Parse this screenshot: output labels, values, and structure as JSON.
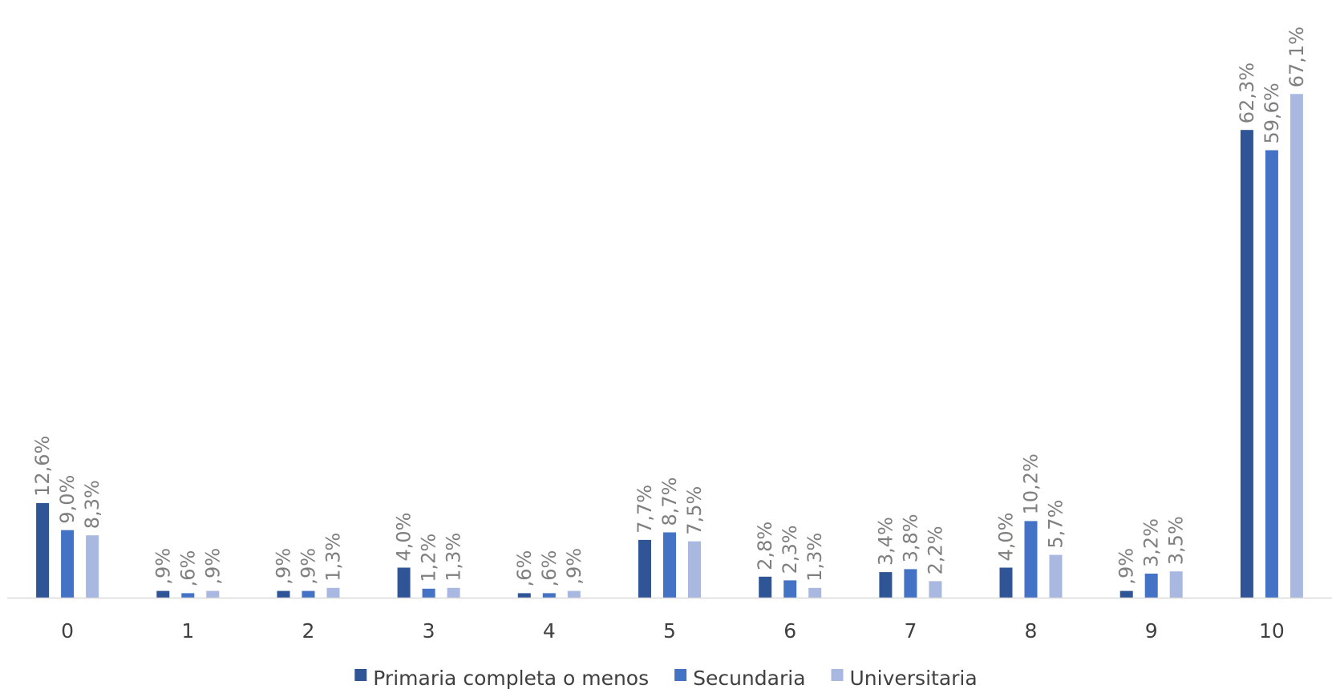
{
  "chart_data": {
    "type": "bar",
    "categories": [
      "0",
      "1",
      "2",
      "3",
      "4",
      "5",
      "6",
      "7",
      "8",
      "9",
      "10"
    ],
    "series": [
      {
        "name": "Primaria completa o menos",
        "color": "#2f5597",
        "values": [
          12.6,
          0.9,
          0.9,
          4.0,
          0.6,
          7.7,
          2.8,
          3.4,
          4.0,
          0.9,
          62.3
        ],
        "labels": [
          "12,6%",
          ",9%",
          ",9%",
          "4,0%",
          ",6%",
          "7,7%",
          "2,8%",
          "3,4%",
          "4,0%",
          ",9%",
          "62,3%"
        ]
      },
      {
        "name": "Secundaria",
        "color": "#4472c4",
        "values": [
          9.0,
          0.6,
          0.9,
          1.2,
          0.6,
          8.7,
          2.3,
          3.8,
          10.2,
          3.2,
          59.6
        ],
        "labels": [
          "9,0%",
          ",6%",
          ",9%",
          "1,2%",
          ",6%",
          "8,7%",
          "2,3%",
          "3,8%",
          "10,2%",
          "3,2%",
          "59,6%"
        ]
      },
      {
        "name": "Universitaria",
        "color": "#a9b8e0",
        "values": [
          8.3,
          0.9,
          1.3,
          1.3,
          0.9,
          7.5,
          1.3,
          2.2,
          5.7,
          3.5,
          67.1
        ],
        "labels": [
          "8,3%",
          ",9%",
          "1,3%",
          "1,3%",
          ",9%",
          "7,5%",
          "1,3%",
          "2,2%",
          "5,7%",
          "3,5%",
          "67,1%"
        ]
      }
    ],
    "title": "",
    "xlabel": "",
    "ylabel": "",
    "ylim": [
      0,
      70
    ],
    "grid": false,
    "legend": "bottom",
    "axis_color": "#d9d9d9"
  }
}
